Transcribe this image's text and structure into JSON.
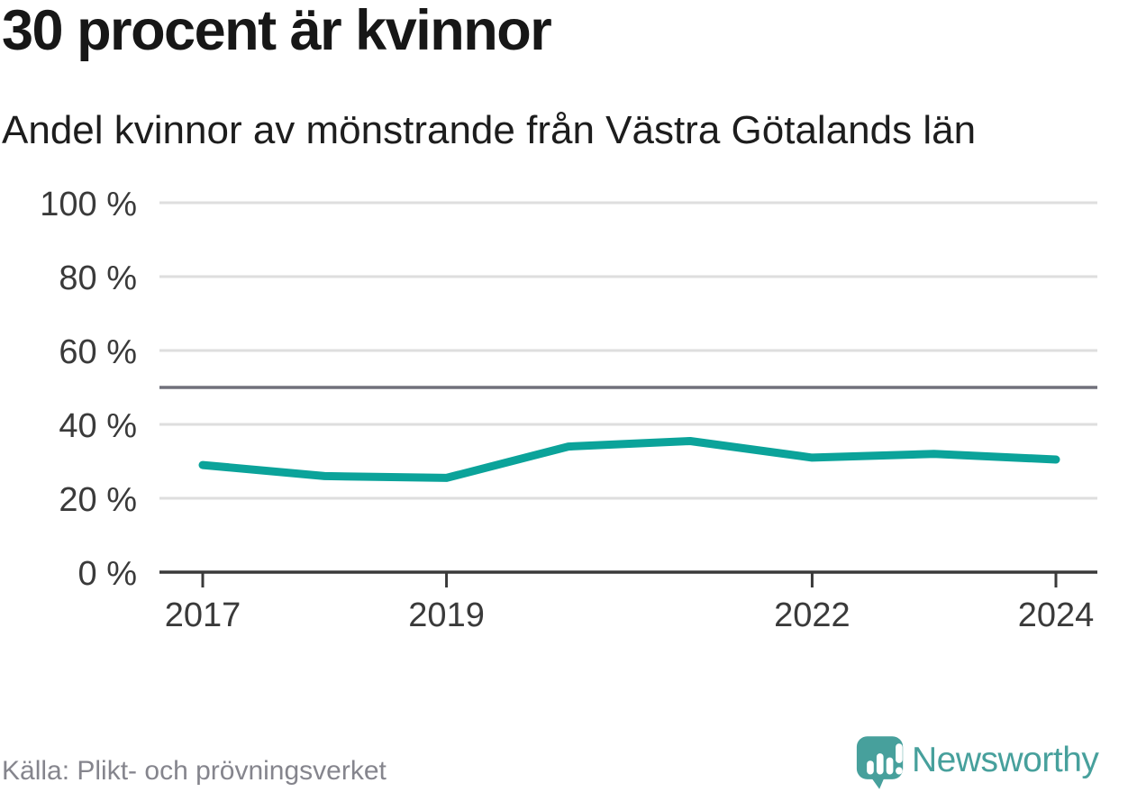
{
  "header": {
    "title": "30 procent är kvinnor",
    "subtitle": "Andel kvinnor av mönstrande från Västra Götalands län"
  },
  "footer": {
    "source": "Källa: Plikt- och prövningsverket",
    "brand": "Newsworthy"
  },
  "colors": {
    "line": "#0ba39a",
    "grid": "#dedede",
    "axis": "#3a3a3a",
    "reference_line": "#71717b",
    "tick_label": "#3a3a3a",
    "brand_teal": "#47a09c",
    "source_gray": "#85858d"
  },
  "chart_data": {
    "type": "line",
    "title": "30 procent är kvinnor",
    "subtitle": "Andel kvinnor av mönstrande från Västra Götalands län",
    "x": [
      2017,
      2018,
      2019,
      2020,
      2021,
      2022,
      2023,
      2024
    ],
    "series": [
      {
        "name": "Andel kvinnor av mönstrande",
        "values": [
          29,
          26,
          25.5,
          34,
          35.5,
          31,
          32,
          30.5
        ]
      }
    ],
    "unit": "%",
    "ylim": [
      0,
      100
    ],
    "y_ticks": [
      0,
      20,
      40,
      60,
      80,
      100
    ],
    "y_tick_suffix": " %",
    "x_tick_labels": [
      2017,
      2019,
      2022,
      2024
    ],
    "reference_line": 50,
    "grid": "horizontal-only",
    "legend": "none",
    "source": "Källa: Plikt- och prövningsverket"
  }
}
